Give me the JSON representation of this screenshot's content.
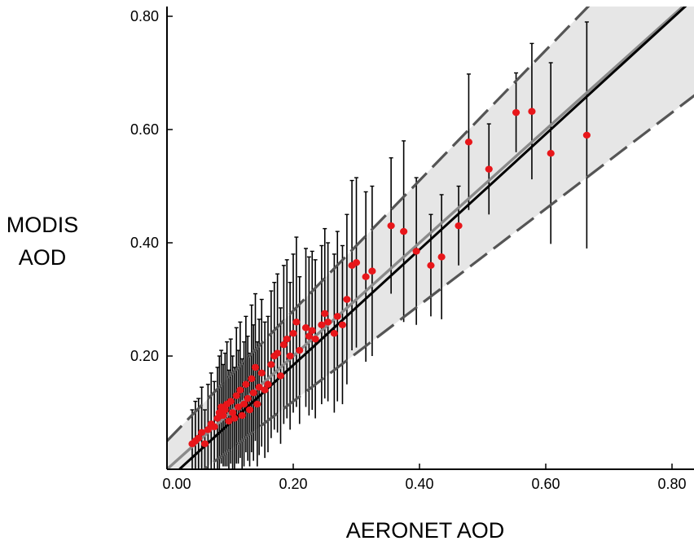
{
  "chart_data": {
    "type": "scatter",
    "title": "",
    "xlabel": "AERONET AOD",
    "ylabel_lines": [
      "MODIS",
      "AOD"
    ],
    "xlim": [
      0.0,
      0.84
    ],
    "ylim": [
      0.0,
      0.81
    ],
    "x_ticks": [
      "0.00",
      "0.20",
      "0.40",
      "0.60",
      "0.80"
    ],
    "x_tick_values": [
      0.0,
      0.2,
      0.4,
      0.6,
      0.8
    ],
    "y_ticks": [
      "0.20",
      "0.40",
      "0.60",
      "0.80"
    ],
    "y_tick_values": [
      0.2,
      0.4,
      0.6,
      0.8
    ],
    "grid": false,
    "colors": {
      "points": "#e8161a",
      "regression": "#000000",
      "one_to_one": "#8a8a8a",
      "envelope": "#555555",
      "envelope_fill": "#e6e6e6",
      "errorbar": "#000000"
    },
    "lines": {
      "regression": {
        "slope": 1.02,
        "intercept": -0.02
      },
      "one_to_one": {
        "slope": 1.0,
        "intercept": 0.0
      },
      "envelope_upper": {
        "slope": 1.15,
        "intercept": 0.05
      },
      "envelope_lower": {
        "slope": 0.85,
        "intercept": -0.05
      }
    },
    "points": [
      {
        "x": 0.04,
        "y": 0.045,
        "err": 0.06
      },
      {
        "x": 0.045,
        "y": 0.05,
        "err": 0.07
      },
      {
        "x": 0.05,
        "y": 0.055,
        "err": 0.07
      },
      {
        "x": 0.055,
        "y": 0.065,
        "err": 0.08
      },
      {
        "x": 0.06,
        "y": 0.045,
        "err": 0.06
      },
      {
        "x": 0.065,
        "y": 0.07,
        "err": 0.08
      },
      {
        "x": 0.07,
        "y": 0.08,
        "err": 0.09
      },
      {
        "x": 0.075,
        "y": 0.075,
        "err": 0.08
      },
      {
        "x": 0.08,
        "y": 0.09,
        "err": 0.09
      },
      {
        "x": 0.083,
        "y": 0.1,
        "err": 0.1
      },
      {
        "x": 0.086,
        "y": 0.11,
        "err": 0.1
      },
      {
        "x": 0.089,
        "y": 0.095,
        "err": 0.09
      },
      {
        "x": 0.092,
        "y": 0.105,
        "err": 0.1
      },
      {
        "x": 0.095,
        "y": 0.115,
        "err": 0.11
      },
      {
        "x": 0.098,
        "y": 0.085,
        "err": 0.09
      },
      {
        "x": 0.101,
        "y": 0.12,
        "err": 0.11
      },
      {
        "x": 0.104,
        "y": 0.1,
        "err": 0.1
      },
      {
        "x": 0.107,
        "y": 0.09,
        "err": 0.09
      },
      {
        "x": 0.11,
        "y": 0.13,
        "err": 0.12
      },
      {
        "x": 0.113,
        "y": 0.11,
        "err": 0.1
      },
      {
        "x": 0.116,
        "y": 0.14,
        "err": 0.12
      },
      {
        "x": 0.119,
        "y": 0.095,
        "err": 0.1
      },
      {
        "x": 0.122,
        "y": 0.115,
        "err": 0.11
      },
      {
        "x": 0.125,
        "y": 0.15,
        "err": 0.12
      },
      {
        "x": 0.128,
        "y": 0.125,
        "err": 0.11
      },
      {
        "x": 0.131,
        "y": 0.105,
        "err": 0.1
      },
      {
        "x": 0.134,
        "y": 0.16,
        "err": 0.13
      },
      {
        "x": 0.137,
        "y": 0.135,
        "err": 0.12
      },
      {
        "x": 0.14,
        "y": 0.18,
        "err": 0.13
      },
      {
        "x": 0.143,
        "y": 0.115,
        "err": 0.11
      },
      {
        "x": 0.146,
        "y": 0.145,
        "err": 0.12
      },
      {
        "x": 0.15,
        "y": 0.17,
        "err": 0.13
      },
      {
        "x": 0.155,
        "y": 0.14,
        "err": 0.12
      },
      {
        "x": 0.16,
        "y": 0.15,
        "err": 0.12
      },
      {
        "x": 0.165,
        "y": 0.185,
        "err": 0.13
      },
      {
        "x": 0.17,
        "y": 0.2,
        "err": 0.13
      },
      {
        "x": 0.175,
        "y": 0.205,
        "err": 0.14
      },
      {
        "x": 0.18,
        "y": 0.165,
        "err": 0.12
      },
      {
        "x": 0.185,
        "y": 0.22,
        "err": 0.14
      },
      {
        "x": 0.19,
        "y": 0.23,
        "err": 0.14
      },
      {
        "x": 0.195,
        "y": 0.2,
        "err": 0.13
      },
      {
        "x": 0.2,
        "y": 0.24,
        "err": 0.14
      },
      {
        "x": 0.205,
        "y": 0.26,
        "err": 0.15
      },
      {
        "x": 0.21,
        "y": 0.21,
        "err": 0.13
      },
      {
        "x": 0.22,
        "y": 0.25,
        "err": 0.14
      },
      {
        "x": 0.225,
        "y": 0.235,
        "err": 0.14
      },
      {
        "x": 0.23,
        "y": 0.245,
        "err": 0.14
      },
      {
        "x": 0.235,
        "y": 0.23,
        "err": 0.14
      },
      {
        "x": 0.245,
        "y": 0.255,
        "err": 0.14
      },
      {
        "x": 0.25,
        "y": 0.275,
        "err": 0.15
      },
      {
        "x": 0.255,
        "y": 0.26,
        "err": 0.14
      },
      {
        "x": 0.265,
        "y": 0.24,
        "err": 0.14
      },
      {
        "x": 0.27,
        "y": 0.27,
        "err": 0.15
      },
      {
        "x": 0.278,
        "y": 0.255,
        "err": 0.14
      },
      {
        "x": 0.285,
        "y": 0.3,
        "err": 0.15
      },
      {
        "x": 0.293,
        "y": 0.36,
        "err": 0.15
      },
      {
        "x": 0.3,
        "y": 0.365,
        "err": 0.15
      },
      {
        "x": 0.315,
        "y": 0.34,
        "err": 0.15
      },
      {
        "x": 0.325,
        "y": 0.35,
        "err": 0.15
      },
      {
        "x": 0.355,
        "y": 0.43,
        "err": 0.12
      },
      {
        "x": 0.375,
        "y": 0.42,
        "err": 0.16
      },
      {
        "x": 0.395,
        "y": 0.385,
        "err": 0.13
      },
      {
        "x": 0.418,
        "y": 0.36,
        "err": 0.09
      },
      {
        "x": 0.435,
        "y": 0.375,
        "err": 0.11
      },
      {
        "x": 0.462,
        "y": 0.43,
        "err": 0.07
      },
      {
        "x": 0.478,
        "y": 0.578,
        "err": 0.12
      },
      {
        "x": 0.51,
        "y": 0.53,
        "err": 0.08
      },
      {
        "x": 0.553,
        "y": 0.63,
        "err": 0.07
      },
      {
        "x": 0.578,
        "y": 0.632,
        "err": 0.12
      },
      {
        "x": 0.608,
        "y": 0.558,
        "err": 0.16
      },
      {
        "x": 0.665,
        "y": 0.59,
        "err": 0.2
      }
    ]
  }
}
